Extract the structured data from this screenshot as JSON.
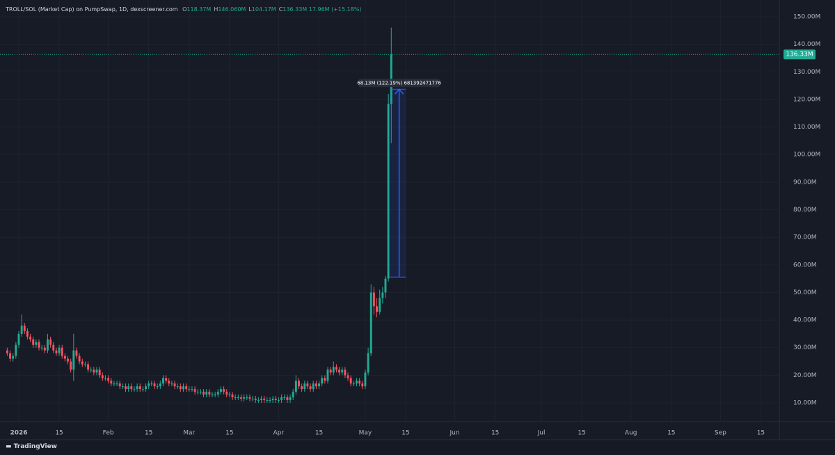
{
  "chart_data": {
    "type": "candlestick",
    "title": "TROLL/SOL (Market Cap) on PumpSwap, 1D, dexscreener.com",
    "legend_values": [
      {
        "label": "O",
        "text": "118.37M"
      },
      {
        "label": "H",
        "text": "146.060M"
      },
      {
        "label": "L",
        "text": "104.17M"
      },
      {
        "label": "C",
        "text": "136.33M"
      }
    ],
    "change": "17.96M (+15.18%)",
    "footer": "TradingView",
    "up_color": "#22ab94",
    "down_color": "#f7525f",
    "grid": true,
    "x": [
      -3,
      -2,
      -1,
      0,
      1,
      2,
      3,
      4,
      5,
      6,
      7,
      8,
      9,
      10,
      11,
      12,
      13,
      14,
      15,
      16,
      17,
      18,
      19,
      20,
      21,
      22,
      23,
      24,
      25,
      26,
      27,
      28,
      29,
      30,
      31,
      32,
      33,
      34,
      35,
      36,
      37,
      38,
      39,
      40,
      41,
      42,
      43,
      44,
      45,
      46,
      47,
      48,
      49,
      50,
      51,
      52,
      53,
      54,
      55,
      56,
      57,
      58,
      59,
      60,
      61,
      62,
      63,
      64,
      65,
      66,
      67,
      68,
      69,
      70,
      71,
      72,
      73,
      74,
      75,
      76,
      77,
      78,
      79,
      80,
      81,
      82,
      83,
      84,
      85,
      86,
      87,
      88,
      89,
      90,
      91,
      92,
      93,
      94,
      95,
      96,
      97,
      98,
      99,
      100,
      101,
      102,
      103,
      104,
      105,
      106,
      107,
      108,
      109,
      110,
      111,
      112,
      113,
      114,
      115,
      116,
      117,
      118,
      119,
      120,
      121,
      122,
      123,
      124,
      125,
      126,
      127,
      128,
      129,
      130
    ],
    "open": [
      29,
      28,
      26,
      27,
      31,
      35,
      38,
      36,
      34,
      33,
      31,
      32,
      30,
      30,
      29,
      33,
      31,
      29,
      28,
      30,
      27,
      26,
      25,
      22,
      29,
      27,
      25,
      24,
      24,
      22,
      22,
      21,
      22,
      20,
      19,
      19,
      18,
      17,
      17,
      17,
      16,
      16,
      15,
      16,
      15,
      15,
      16,
      15,
      15,
      16,
      17,
      17,
      16,
      16,
      17,
      19,
      18,
      17,
      17,
      16,
      16,
      15,
      16,
      15,
      15,
      15,
      14,
      14,
      14,
      13,
      14,
      13,
      13,
      13,
      14,
      15,
      14,
      13,
      13,
      12,
      12,
      12,
      11.5,
      12,
      12,
      11.5,
      11.5,
      11,
      11,
      11.5,
      11,
      11,
      11,
      11.5,
      11,
      11,
      12,
      12,
      11,
      12,
      14,
      18,
      16,
      15,
      17,
      16,
      15,
      17,
      16,
      17,
      19,
      18,
      22,
      21,
      23,
      22,
      21,
      22,
      20,
      19,
      17,
      17,
      18,
      17,
      16,
      21,
      28,
      50,
      45,
      43,
      48,
      50,
      55,
      118.37
    ],
    "high": [
      30,
      29,
      28,
      32,
      36,
      42,
      39,
      37,
      35,
      34,
      33,
      33,
      31,
      31,
      35,
      34,
      32,
      30,
      31,
      31,
      28,
      27,
      26,
      35,
      30,
      28,
      26,
      25,
      25,
      23,
      23,
      23,
      23,
      21,
      20,
      20,
      19,
      18,
      18,
      18,
      17,
      17,
      17,
      17,
      16,
      17,
      17,
      16,
      17,
      18,
      18,
      18,
      17,
      18,
      20,
      20,
      19,
      18,
      18,
      17,
      17,
      17,
      17,
      16,
      16,
      16,
      15,
      15,
      15,
      15,
      15,
      14,
      14,
      15,
      16,
      16,
      15,
      14,
      14,
      13,
      13,
      13,
      13,
      13,
      13,
      12.5,
      12.5,
      12,
      12.5,
      12.5,
      12,
      12,
      12.5,
      12.5,
      12,
      13,
      13,
      13,
      13,
      15,
      20,
      19,
      17,
      18,
      18,
      17,
      18,
      18,
      18,
      20,
      20,
      23,
      23,
      25,
      24,
      23,
      23,
      23,
      21,
      20,
      18,
      19,
      19,
      18,
      22,
      30,
      53,
      52,
      48,
      51,
      52,
      56,
      122,
      146.06
    ],
    "low": [
      27,
      25,
      25,
      26,
      30,
      34,
      35,
      33,
      32,
      30,
      30,
      29,
      29,
      28,
      28,
      30,
      28,
      27,
      27,
      26,
      25,
      24,
      21,
      18,
      26,
      24,
      23,
      23,
      21,
      21,
      20,
      20,
      19,
      18,
      18,
      17,
      16,
      16,
      16,
      15,
      15,
      14,
      14,
      14,
      14,
      14,
      14,
      14,
      14,
      15,
      16,
      15,
      15,
      15,
      16,
      17,
      16,
      16,
      15,
      15,
      14,
      14,
      14,
      14,
      14,
      13,
      13,
      13,
      12,
      12,
      12,
      12,
      12,
      12,
      13,
      13,
      12,
      12,
      11,
      11,
      11,
      10.5,
      10.5,
      11,
      10.5,
      10.5,
      10,
      10,
      10,
      10,
      10,
      10,
      10,
      10,
      10,
      10,
      11,
      10,
      10,
      11,
      13,
      15,
      14,
      14,
      15,
      14,
      14,
      15,
      15,
      16,
      17,
      17,
      20,
      20,
      21,
      20,
      20,
      19,
      18,
      16,
      16,
      16,
      16,
      15,
      15,
      20,
      27,
      42,
      41,
      42,
      46,
      48,
      54,
      104.17
    ],
    "close": [
      28,
      26,
      27,
      31,
      35,
      38,
      36,
      34,
      33,
      31,
      32,
      30,
      30,
      29,
      33,
      31,
      29,
      28,
      30,
      27,
      26,
      25,
      22,
      29,
      27,
      25,
      24,
      24,
      22,
      22,
      21,
      22,
      20,
      19,
      19,
      18,
      17,
      17,
      17,
      16,
      16,
      15,
      16,
      15,
      15,
      16,
      15,
      15,
      16,
      17,
      17,
      16,
      16,
      17,
      19,
      18,
      17,
      17,
      16,
      16,
      15,
      16,
      15,
      15,
      15,
      14,
      14,
      14,
      13,
      14,
      13,
      13,
      13,
      14,
      15,
      14,
      13,
      13,
      12,
      12,
      12,
      11.5,
      12,
      12,
      11.5,
      11.5,
      11,
      11,
      11.5,
      11,
      11,
      11,
      11.5,
      11,
      11,
      12,
      12,
      11,
      12,
      14,
      18,
      16,
      15,
      17,
      16,
      15,
      17,
      16,
      17,
      19,
      18,
      22,
      21,
      23,
      22,
      21,
      22,
      20,
      19,
      17,
      17,
      18,
      17,
      16,
      21,
      28,
      50,
      45,
      43,
      48,
      50,
      55,
      118.37,
      136.33
    ],
    "xlim": [
      -5.5,
      264.4
    ],
    "xticks": [
      {
        "value": 1,
        "label": "2026"
      },
      15,
      {
        "value": 32,
        "label": "Feb"
      },
      {
        "value": 46,
        "label": "15"
      },
      {
        "value": 60,
        "label": "Mar"
      },
      {
        "value": 74,
        "label": "15"
      },
      {
        "value": 91,
        "label": "Apr"
      },
      {
        "value": 105,
        "label": "15"
      },
      {
        "value": 121,
        "label": "May"
      },
      {
        "value": 135,
        "label": "15"
      },
      {
        "value": 152,
        "label": "Jun"
      },
      {
        "value": 166,
        "label": "15"
      },
      {
        "value": 182,
        "label": "Jul"
      },
      {
        "value": 196,
        "label": "15"
      },
      {
        "value": 213,
        "label": "Aug"
      },
      {
        "value": 227,
        "label": "15"
      },
      {
        "value": 244,
        "label": "Sep"
      },
      {
        "value": 258,
        "label": "15"
      }
    ],
    "ylim": [
      3.19,
      156.06
    ],
    "yticks": [
      {
        "value": 10,
        "label": "10.00M"
      },
      {
        "value": 20,
        "label": "20.00M"
      },
      {
        "value": 30,
        "label": "30.00M"
      },
      {
        "value": 40,
        "label": "40.00M"
      },
      {
        "value": 50,
        "label": "50.00M"
      },
      {
        "value": 60,
        "label": "60.00M"
      },
      {
        "value": 70,
        "label": "70.00M"
      },
      {
        "value": 80,
        "label": "80.00M"
      },
      {
        "value": 90,
        "label": "90.00M"
      },
      {
        "value": 100,
        "label": "100.00M"
      },
      {
        "value": 110,
        "label": "110.00M"
      },
      {
        "value": 120,
        "label": "120.00M"
      },
      {
        "value": 130,
        "label": "130.00M"
      },
      {
        "value": 140,
        "label": "140.00M"
      },
      {
        "value": 150,
        "label": "150.00M"
      }
    ],
    "price_line": {
      "value": 136.33,
      "label": "136.33M"
    },
    "measure": {
      "from": 55.6,
      "to": 123.7,
      "x": [
        129.5,
        135
      ],
      "label": "68.13M (122.19%) 681392471776"
    }
  }
}
